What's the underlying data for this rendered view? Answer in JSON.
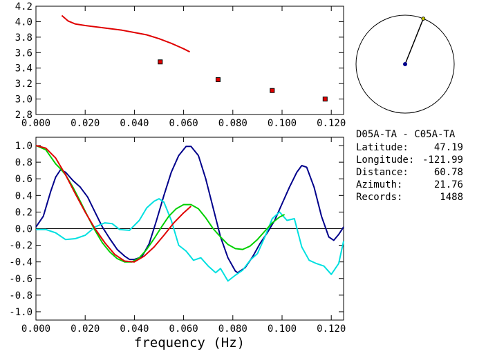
{
  "chart_data": [
    {
      "type": "scatter",
      "xlim": [
        0.0,
        0.125
      ],
      "ylim": [
        2.8,
        4.2
      ],
      "xticks": [
        "0.000",
        "0.020",
        "0.040",
        "0.060",
        "0.080",
        "0.100",
        "0.120"
      ],
      "yticks": [
        "4.2",
        "4.0",
        "3.8",
        "3.6",
        "3.4",
        "3.2",
        "3.0",
        "2.8"
      ],
      "series": [
        {
          "color": "#e00000",
          "style": "line",
          "x": [
            0.0105,
            0.013,
            0.016,
            0.02,
            0.025,
            0.03,
            0.035,
            0.04,
            0.045,
            0.05,
            0.055,
            0.06,
            0.0625
          ],
          "y": [
            4.08,
            4.01,
            3.97,
            3.95,
            3.93,
            3.91,
            3.89,
            3.86,
            3.83,
            3.78,
            3.72,
            3.65,
            3.61
          ]
        },
        {
          "color": "#e00000",
          "style": "markers",
          "x": [
            0.0505,
            0.074,
            0.096,
            0.1175
          ],
          "y": [
            3.48,
            3.25,
            3.11,
            3.0
          ]
        }
      ]
    },
    {
      "type": "line",
      "xlabel": "frequency (Hz)",
      "xlim": [
        0.0,
        0.125
      ],
      "ylim": [
        -1.1,
        1.1
      ],
      "xticks": [
        "0.000",
        "0.020",
        "0.040",
        "0.060",
        "0.080",
        "0.100",
        "0.120"
      ],
      "yticks": [
        "1.0",
        "0.8",
        "0.6",
        "0.4",
        "0.2",
        "0.0",
        "-0.2",
        "-0.4",
        "-0.6",
        "-0.8",
        "-1.0"
      ],
      "series": [
        {
          "color": "#00008b",
          "x": [
            0.0,
            0.003,
            0.006,
            0.008,
            0.01,
            0.012,
            0.015,
            0.018,
            0.021,
            0.024,
            0.027,
            0.03,
            0.033,
            0.036,
            0.038,
            0.04,
            0.043,
            0.046,
            0.049,
            0.052,
            0.055,
            0.058,
            0.061,
            0.063,
            0.066,
            0.069,
            0.072,
            0.075,
            0.078,
            0.081,
            0.082,
            0.085,
            0.088,
            0.091,
            0.094,
            0.097,
            0.1,
            0.103,
            0.106,
            0.108,
            0.11,
            0.113,
            0.116,
            0.119,
            0.121,
            0.123,
            0.125
          ],
          "y": [
            0.02,
            0.15,
            0.45,
            0.62,
            0.71,
            0.68,
            0.58,
            0.5,
            0.38,
            0.2,
            0.02,
            -0.12,
            -0.25,
            -0.33,
            -0.37,
            -0.37,
            -0.34,
            -0.18,
            0.1,
            0.4,
            0.68,
            0.88,
            0.99,
            0.99,
            0.88,
            0.6,
            0.25,
            -0.1,
            -0.35,
            -0.51,
            -0.53,
            -0.47,
            -0.34,
            -0.18,
            -0.05,
            0.1,
            0.3,
            0.5,
            0.68,
            0.76,
            0.74,
            0.5,
            0.15,
            -0.1,
            -0.14,
            -0.07,
            0.02
          ]
        },
        {
          "color": "#00e0e0",
          "x": [
            0.0,
            0.004,
            0.008,
            0.012,
            0.016,
            0.02,
            0.024,
            0.028,
            0.031,
            0.034,
            0.038,
            0.042,
            0.045,
            0.048,
            0.05,
            0.052,
            0.055,
            0.058,
            0.061,
            0.064,
            0.067,
            0.07,
            0.073,
            0.075,
            0.078,
            0.081,
            0.084,
            0.087,
            0.09,
            0.093,
            0.096,
            0.099,
            0.102,
            0.105,
            0.108,
            0.111,
            0.114,
            0.117,
            0.12,
            0.123,
            0.125
          ],
          "y": [
            -0.01,
            -0.01,
            -0.05,
            -0.13,
            -0.12,
            -0.08,
            0.02,
            0.07,
            0.06,
            -0.01,
            -0.02,
            0.1,
            0.25,
            0.33,
            0.36,
            0.32,
            0.1,
            -0.2,
            -0.27,
            -0.38,
            -0.35,
            -0.45,
            -0.53,
            -0.48,
            -0.63,
            -0.56,
            -0.5,
            -0.38,
            -0.3,
            -0.1,
            0.12,
            0.2,
            0.1,
            0.12,
            -0.22,
            -0.38,
            -0.42,
            -0.45,
            -0.55,
            -0.42,
            -0.15
          ]
        },
        {
          "color": "#00d000",
          "x": [
            0.0,
            0.004,
            0.008,
            0.01,
            0.012,
            0.015,
            0.018,
            0.021,
            0.024,
            0.027,
            0.03,
            0.033,
            0.036,
            0.039,
            0.042,
            0.045,
            0.048,
            0.051,
            0.054,
            0.057,
            0.06,
            0.063,
            0.066,
            0.069,
            0.072,
            0.075,
            0.078,
            0.081,
            0.084,
            0.087,
            0.09,
            0.093,
            0.096,
            0.099,
            0.101
          ],
          "y": [
            1.0,
            0.95,
            0.78,
            0.72,
            0.65,
            0.5,
            0.33,
            0.15,
            -0.02,
            -0.17,
            -0.28,
            -0.36,
            -0.4,
            -0.4,
            -0.35,
            -0.25,
            -0.12,
            0.02,
            0.15,
            0.24,
            0.29,
            0.29,
            0.24,
            0.13,
            0.0,
            -0.1,
            -0.19,
            -0.24,
            -0.25,
            -0.21,
            -0.13,
            -0.03,
            0.07,
            0.14,
            0.17
          ]
        },
        {
          "color": "#e00000",
          "x": [
            0.0,
            0.004,
            0.008,
            0.012,
            0.016,
            0.02,
            0.024,
            0.028,
            0.032,
            0.036,
            0.04,
            0.044,
            0.048,
            0.052,
            0.056,
            0.06,
            0.063
          ],
          "y": [
            1.0,
            0.97,
            0.85,
            0.65,
            0.42,
            0.2,
            0.0,
            -0.17,
            -0.31,
            -0.39,
            -0.4,
            -0.33,
            -0.22,
            -0.08,
            0.07,
            0.19,
            0.27
          ]
        }
      ]
    }
  ],
  "station_map": {
    "azimuth_deg": 21.76,
    "circle_color": "#000000",
    "center_dot_color": "#00008b",
    "endpoint_dot_color": "#c8c800"
  },
  "info_panel": {
    "pair": "D05A-TA - C05A-TA",
    "latitude_label": "Latitude:",
    "latitude_value": "47.19",
    "longitude_label": "Longitude:",
    "longitude_value": "-121.99",
    "distance_label": "Distance:",
    "distance_value": "60.78",
    "azimuth_label": "Azimuth:",
    "azimuth_value": "21.76",
    "records_label": "Records:",
    "records_value": "1488"
  }
}
